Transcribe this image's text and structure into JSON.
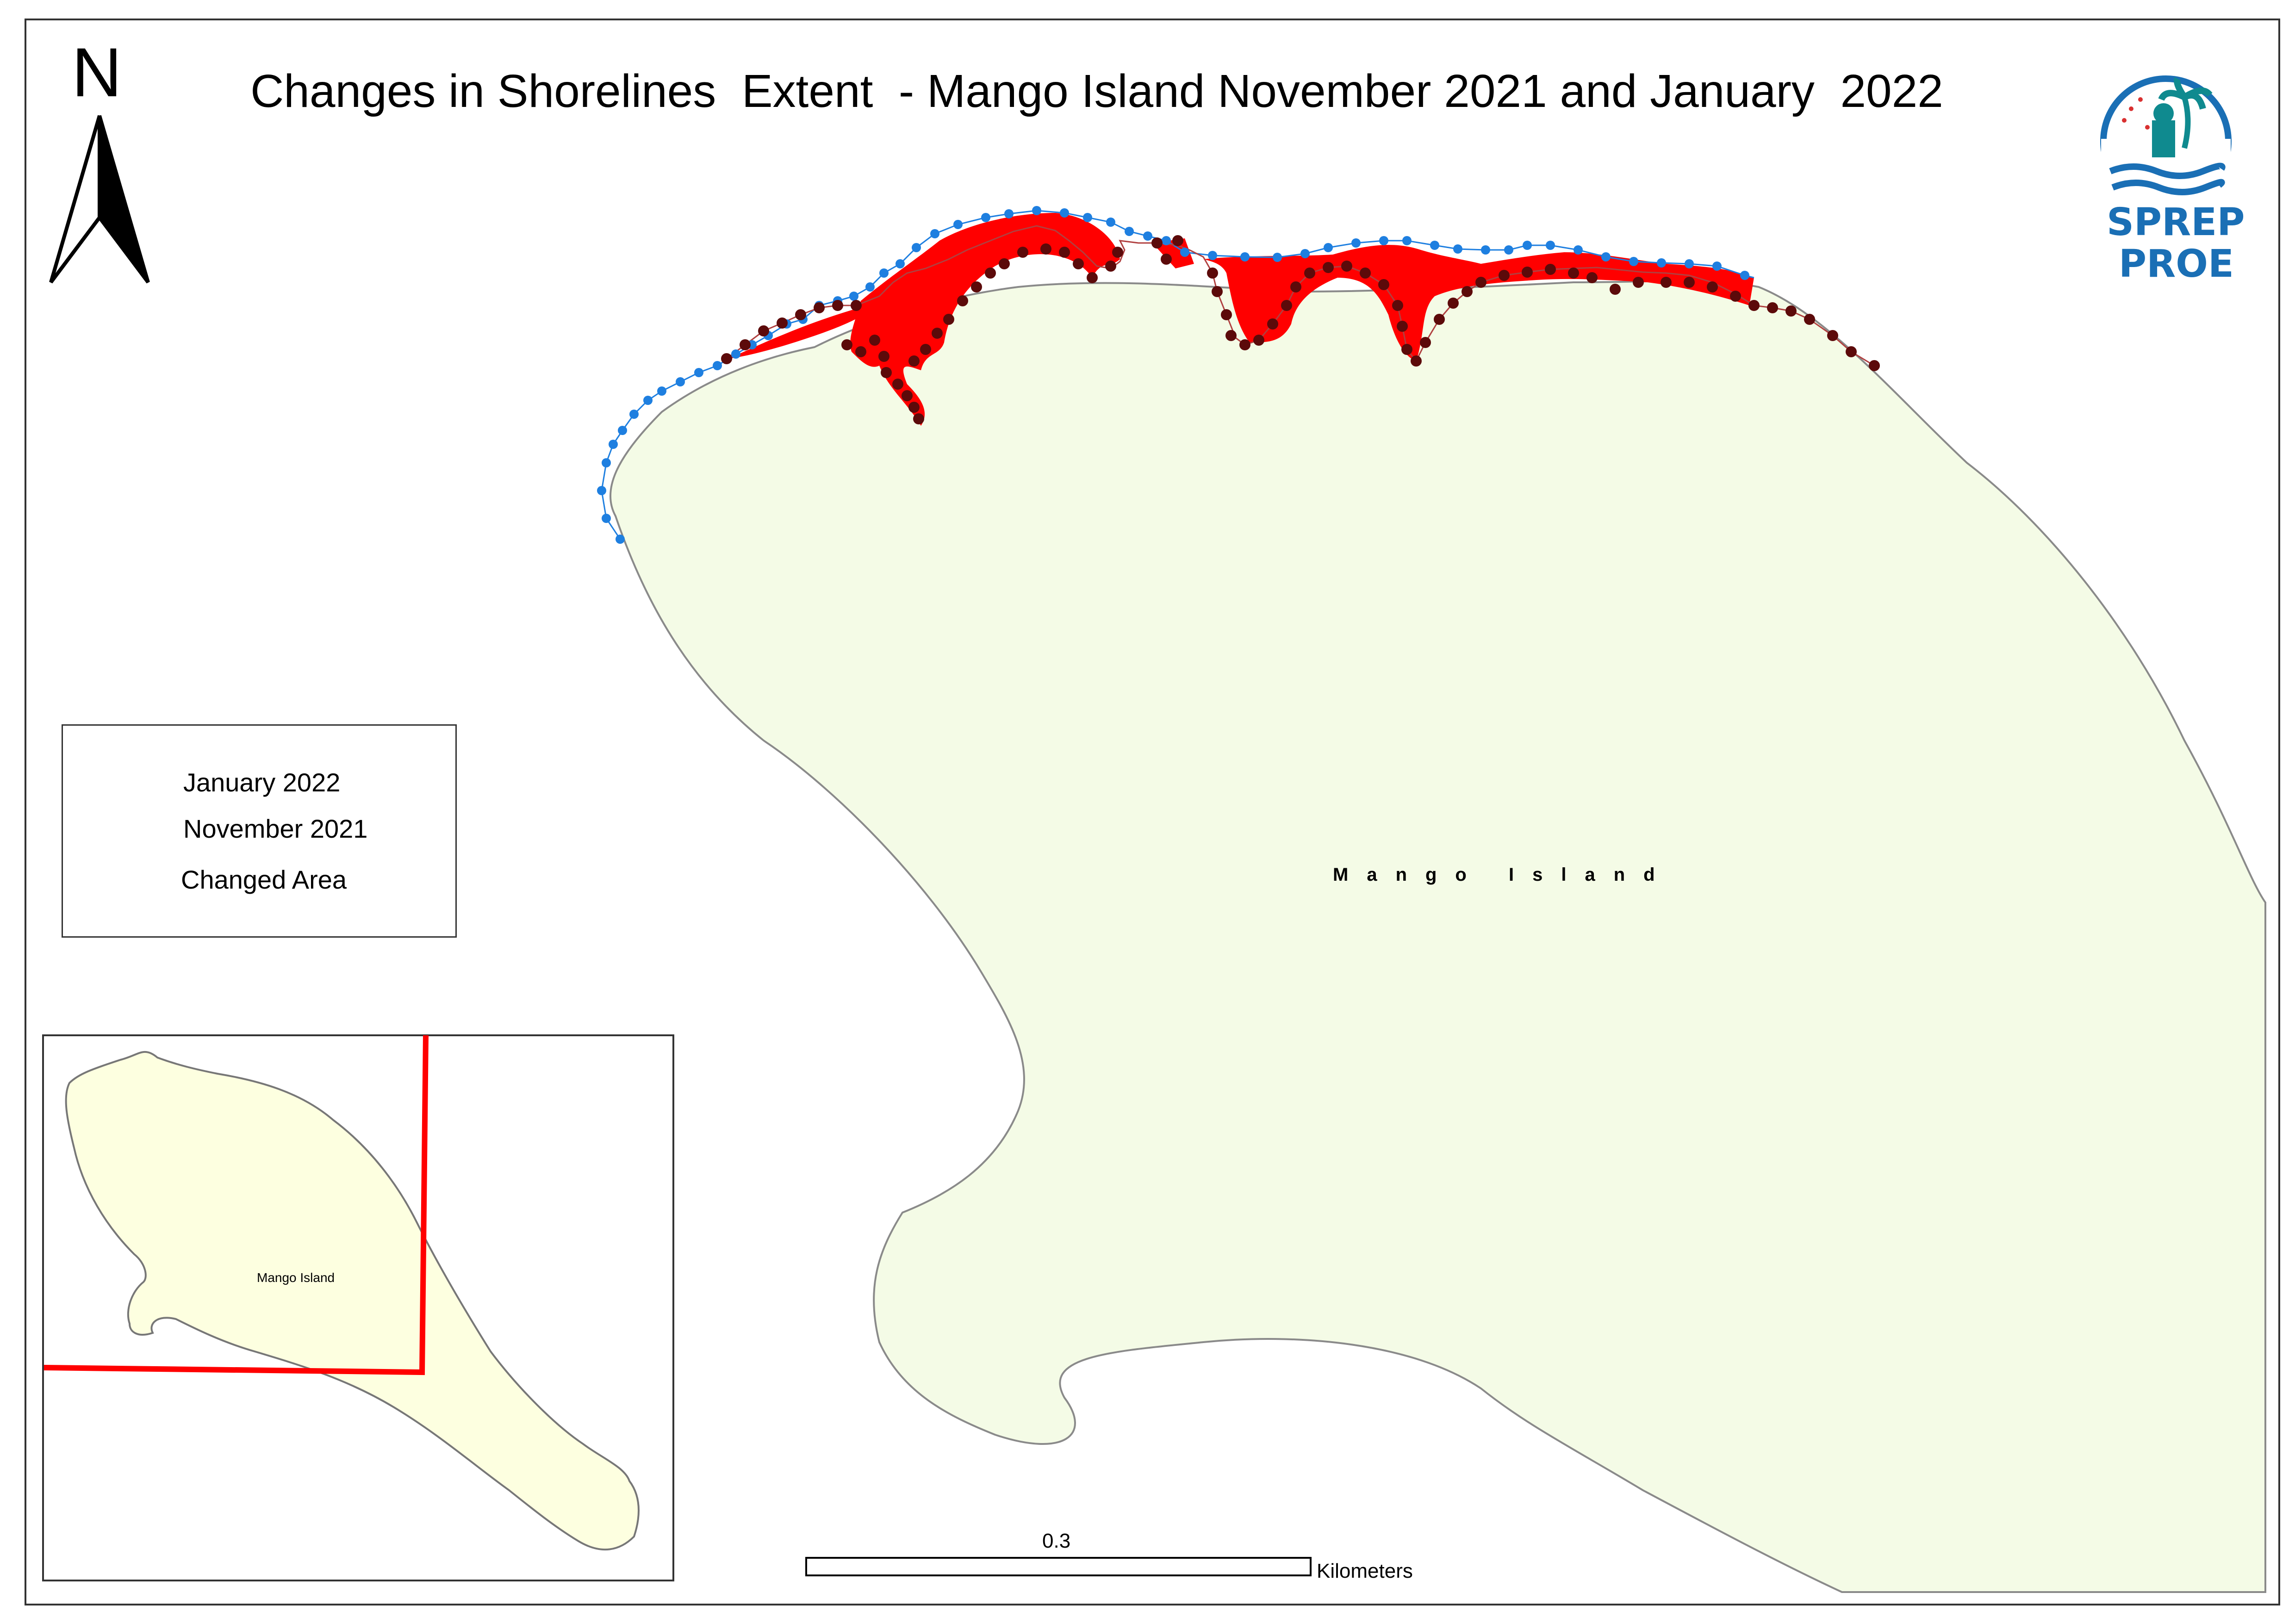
{
  "map": {
    "title": "Changes in Shorelines  Extent  - Mango Island November 2021 and January  2022",
    "north_arrow_label": "N",
    "island_label": "Mango Island",
    "land_color": "#f4fbe6",
    "changed_area_color": "#ff0000",
    "january_color": "#5c0a0a",
    "november_color": "#1e7fe0"
  },
  "legend": {
    "items": [
      {
        "label": "January 2022",
        "symbol": "dark-red-dotted-line"
      },
      {
        "label": "November 2021",
        "symbol": "blue-dotted-line"
      },
      {
        "label": "Changed Area",
        "symbol": "red-fill"
      }
    ]
  },
  "inset": {
    "label": "Mango Island",
    "land_color": "#fdffe0",
    "frame_color": "#ff0000"
  },
  "scale_bar": {
    "value": "0.3",
    "unit": "Kilometers"
  },
  "logo": {
    "line1": "SPREP",
    "line2": "PROE",
    "icon": "sprep-logo-icon"
  }
}
